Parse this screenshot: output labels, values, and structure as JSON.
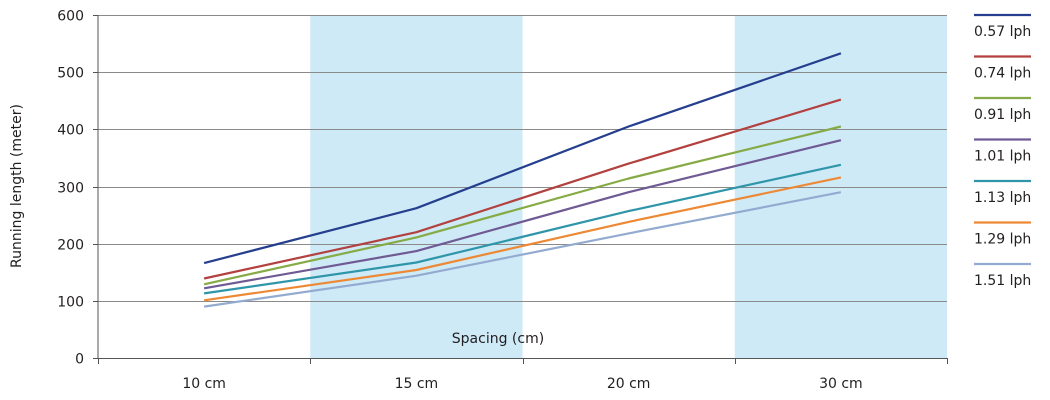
{
  "chart_data": {
    "type": "line",
    "categories": [
      "10 cm",
      "15 cm",
      "20 cm",
      "30 cm"
    ],
    "ylabel": "Running length (meter)",
    "annotation": "Spacing (cm)",
    "ylim": [
      0,
      600
    ],
    "yticks": [
      0,
      100,
      200,
      300,
      400,
      500,
      600
    ],
    "grid": true,
    "legend_position": "right",
    "shaded_categories": [
      1,
      3
    ],
    "shade_color": "#cfeaf7",
    "series": [
      {
        "name": "0.57 lph",
        "color": "#253f8e",
        "values": [
          166,
          262,
          405,
          533
        ]
      },
      {
        "name": "0.74 lph",
        "color": "#b2413f",
        "values": [
          139,
          220,
          340,
          452
        ]
      },
      {
        "name": "0.91 lph",
        "color": "#86ab46",
        "values": [
          129,
          211,
          314,
          405
        ]
      },
      {
        "name": "1.01 lph",
        "color": "#6f5a93",
        "values": [
          122,
          187,
          290,
          381
        ]
      },
      {
        "name": "1.13 lph",
        "color": "#2f96a9",
        "values": [
          113,
          167,
          257,
          338
        ]
      },
      {
        "name": "1.29 lph",
        "color": "#ed8934",
        "values": [
          101,
          154,
          238,
          316
        ]
      },
      {
        "name": "1.51 lph",
        "color": "#94abd0",
        "values": [
          90,
          144,
          218,
          290
        ]
      }
    ]
  }
}
